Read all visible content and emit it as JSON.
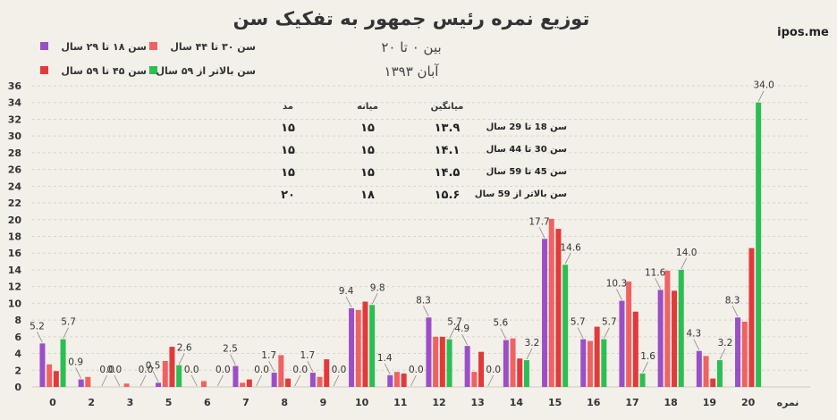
{
  "brand": "ipos.me",
  "chart_data": {
    "type": "bar",
    "title": "توزیع نمره رئیس جمهور به تفکیک سن",
    "subtitle": "بین ۰ تا ۲۰",
    "date": "آبان ۱۳۹۳",
    "xlabel": "نمره",
    "ylabel": "",
    "ylim": [
      0,
      36
    ],
    "yticks": [
      0,
      2,
      4,
      6,
      8,
      10,
      12,
      14,
      16,
      18,
      20,
      22,
      24,
      26,
      28,
      30,
      32,
      34,
      36
    ],
    "grid": true,
    "legend_position": "top-left",
    "categories": [
      "0",
      "2",
      "3",
      "5",
      "6",
      "7",
      "8",
      "9",
      "10",
      "11",
      "12",
      "13",
      "14",
      "15",
      "16",
      "17",
      "18",
      "19",
      "20"
    ],
    "series": [
      {
        "name": "سن ۱۸ تا ۲۹ سال",
        "color": "#9b4fc6",
        "values": [
          5.2,
          0.9,
          0.0,
          0.5,
          0.0,
          2.5,
          1.7,
          1.7,
          9.4,
          1.4,
          8.3,
          4.9,
          5.6,
          17.7,
          5.7,
          10.3,
          11.6,
          4.3,
          8.3
        ]
      },
      {
        "name": "سن ۳۰ تا ۴۴ سال",
        "color": "#f06262",
        "values": [
          2.7,
          1.2,
          0.4,
          3.1,
          0.7,
          0.5,
          3.8,
          1.2,
          9.2,
          1.8,
          6.0,
          1.8,
          5.8,
          20.1,
          5.5,
          12.6,
          13.9,
          3.7,
          7.8
        ]
      },
      {
        "name": "سن ۴۵ تا ۵۹ سال",
        "color": "#e23a3a",
        "values": [
          1.9,
          0.0,
          0.0,
          4.8,
          0.0,
          0.9,
          1.0,
          3.3,
          10.2,
          1.6,
          6.0,
          4.2,
          3.4,
          18.9,
          7.2,
          9.0,
          11.5,
          1.0,
          16.6
        ]
      },
      {
        "name": "سن بالاتر از ۵۹ سال",
        "color": "#2bbf53",
        "values": [
          5.7,
          0.0,
          0.0,
          2.6,
          0.0,
          0.0,
          0.0,
          0.0,
          9.8,
          0.0,
          5.7,
          0.0,
          3.2,
          14.6,
          5.7,
          1.6,
          14.0,
          3.2,
          34.0
        ]
      }
    ],
    "data_labels": [
      {
        "category": "0",
        "series": 0,
        "text": "5.2"
      },
      {
        "category": "0",
        "series": 3,
        "text": "5.7"
      },
      {
        "category": "2",
        "series": 0,
        "text": "0.9"
      },
      {
        "category": "2",
        "series": 3,
        "text": "0.0"
      },
      {
        "category": "3",
        "series": 0,
        "text": "0.0"
      },
      {
        "category": "3",
        "series": 3,
        "text": "0.0"
      },
      {
        "category": "5",
        "series": 0,
        "text": "0.5"
      },
      {
        "category": "5",
        "series": 3,
        "text": "2.6"
      },
      {
        "category": "6",
        "series": 0,
        "text": "0.0"
      },
      {
        "category": "6",
        "series": 3,
        "text": "0.0"
      },
      {
        "category": "7",
        "series": 0,
        "text": "2.5"
      },
      {
        "category": "7",
        "series": 3,
        "text": "0.0"
      },
      {
        "category": "8",
        "series": 0,
        "text": "1.7"
      },
      {
        "category": "8",
        "series": 3,
        "text": "0.0"
      },
      {
        "category": "9",
        "series": 0,
        "text": "1.7"
      },
      {
        "category": "9",
        "series": 3,
        "text": "0.0"
      },
      {
        "category": "10",
        "series": 0,
        "text": "9.4"
      },
      {
        "category": "10",
        "series": 3,
        "text": "9.8"
      },
      {
        "category": "11",
        "series": 0,
        "text": "1.4"
      },
      {
        "category": "11",
        "series": 3,
        "text": "0.0"
      },
      {
        "category": "12",
        "series": 0,
        "text": "8.3"
      },
      {
        "category": "12",
        "series": 3,
        "text": "5.7"
      },
      {
        "category": "13",
        "series": 0,
        "text": "4.9"
      },
      {
        "category": "13",
        "series": 3,
        "text": "0.0"
      },
      {
        "category": "14",
        "series": 0,
        "text": "5.6"
      },
      {
        "category": "14",
        "series": 3,
        "text": "3.2"
      },
      {
        "category": "15",
        "series": 0,
        "text": "17.7"
      },
      {
        "category": "15",
        "series": 3,
        "text": "14.6"
      },
      {
        "category": "16",
        "series": 0,
        "text": "5.7"
      },
      {
        "category": "16",
        "series": 3,
        "text": "5.7"
      },
      {
        "category": "17",
        "series": 0,
        "text": "10.3"
      },
      {
        "category": "17",
        "series": 3,
        "text": "1.6"
      },
      {
        "category": "18",
        "series": 0,
        "text": "11.6"
      },
      {
        "category": "18",
        "series": 3,
        "text": "14.0"
      },
      {
        "category": "19",
        "series": 0,
        "text": "4.3"
      },
      {
        "category": "19",
        "series": 3,
        "text": "3.2"
      },
      {
        "category": "20",
        "series": 0,
        "text": "8.3"
      },
      {
        "category": "20",
        "series": 3,
        "text": "34.0"
      }
    ],
    "stats_table": {
      "headers": [
        "میانگین",
        "میانه",
        "مد"
      ],
      "rows": [
        {
          "group": "سن 18 تا 29 سال",
          "mean": "۱۳.۹",
          "median": "۱۵",
          "mode": "۱۵"
        },
        {
          "group": "سن 30 تا 44 سال",
          "mean": "۱۴.۱",
          "median": "۱۵",
          "mode": "۱۵"
        },
        {
          "group": "سن 45 تا 59 سال",
          "mean": "۱۴.۵",
          "median": "۱۵",
          "mode": "۱۵"
        },
        {
          "group": "سن بالاتر از 59 سال",
          "mean": "۱۵.۶",
          "median": "۱۸",
          "mode": "۲۰"
        }
      ]
    }
  }
}
